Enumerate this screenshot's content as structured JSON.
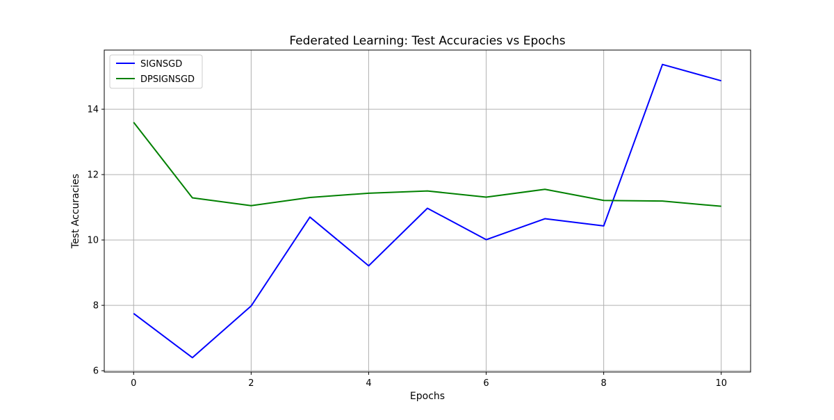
{
  "chart_data": {
    "type": "line",
    "title": "Federated Learning: Test Accuracies vs Epochs",
    "xlabel": "Epochs",
    "ylabel": "Test Accuracies",
    "x": [
      0,
      1,
      2,
      3,
      4,
      5,
      6,
      7,
      8,
      9,
      10
    ],
    "xlim": [
      -0.5,
      10.5
    ],
    "ylim": [
      5.96,
      15.81
    ],
    "xticks": [
      0,
      2,
      4,
      6,
      8,
      10
    ],
    "yticks": [
      6,
      8,
      10,
      12,
      14
    ],
    "grid": true,
    "legend_position": "top-left",
    "series": [
      {
        "name": "SIGNSGD",
        "color": "#0000ff",
        "values": [
          7.75,
          6.4,
          7.98,
          10.7,
          9.21,
          10.97,
          10.01,
          10.65,
          10.43,
          15.37,
          14.87
        ]
      },
      {
        "name": "DPSIGNSGD",
        "color": "#008000",
        "values": [
          13.6,
          11.29,
          11.05,
          11.3,
          11.43,
          11.5,
          11.31,
          11.55,
          11.21,
          11.19,
          11.03
        ]
      }
    ]
  }
}
